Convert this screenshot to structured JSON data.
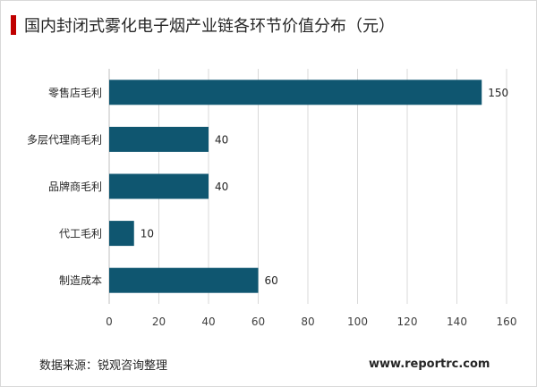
{
  "header": {
    "title": "国内封闭式雾化电子烟产业链各环节价值分布（元）"
  },
  "footer": {
    "source": "数据来源：锐观咨询整理",
    "website": "www.reportrc.com"
  },
  "colors": {
    "bar": "#0f5670",
    "accent": "#c00000",
    "grid": "#d9d9d9"
  },
  "chart_data": {
    "type": "bar",
    "orientation": "horizontal",
    "title": "国内封闭式雾化电子烟产业链各环节价值分布（元）",
    "categories": [
      "零售店毛利",
      "多层代理商毛利",
      "品牌商毛利",
      "代工毛利",
      "制造成本"
    ],
    "values": [
      150,
      40,
      40,
      10,
      60
    ],
    "xlim": [
      0,
      160
    ],
    "xticks": [
      0,
      20,
      40,
      60,
      80,
      100,
      120,
      140,
      160
    ],
    "grid": true,
    "data_labels": true
  }
}
